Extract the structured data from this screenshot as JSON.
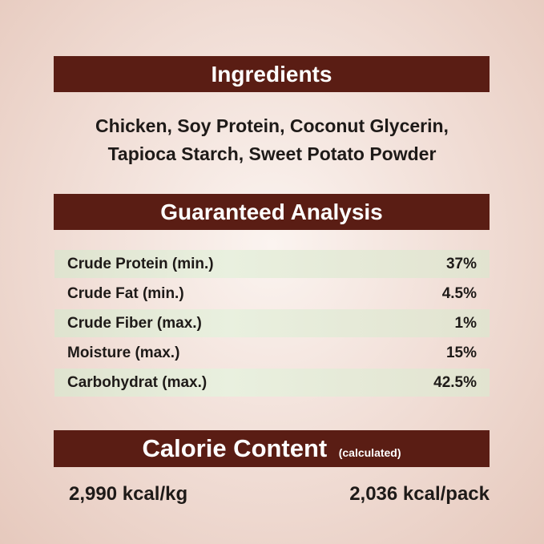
{
  "ingredients": {
    "title": "Ingredients",
    "lines": [
      "Chicken,  Soy Protein, Coconut Glycerin,",
      "Tapioca Starch, Sweet Potato Powder"
    ]
  },
  "analysis": {
    "title": "Guaranteed Analysis",
    "rows": [
      {
        "label": "Crude Protein (min.)",
        "value": "37%"
      },
      {
        "label": "Crude Fat (min.)",
        "value": "4.5%"
      },
      {
        "label": "Crude Fiber (max.)",
        "value": "1%"
      },
      {
        "label": "Moisture (max.)",
        "value": "15%"
      },
      {
        "label": "Carbohydrat (max.)",
        "value": "42.5%"
      }
    ]
  },
  "calorie": {
    "title": "Calorie Content",
    "note": "(calculated)",
    "per_kg": "2,990 kcal/kg",
    "per_pack": "2,036 kcal/pack"
  },
  "colors": {
    "banner": "#5a1d14",
    "row_shade": "#e4ead7"
  }
}
